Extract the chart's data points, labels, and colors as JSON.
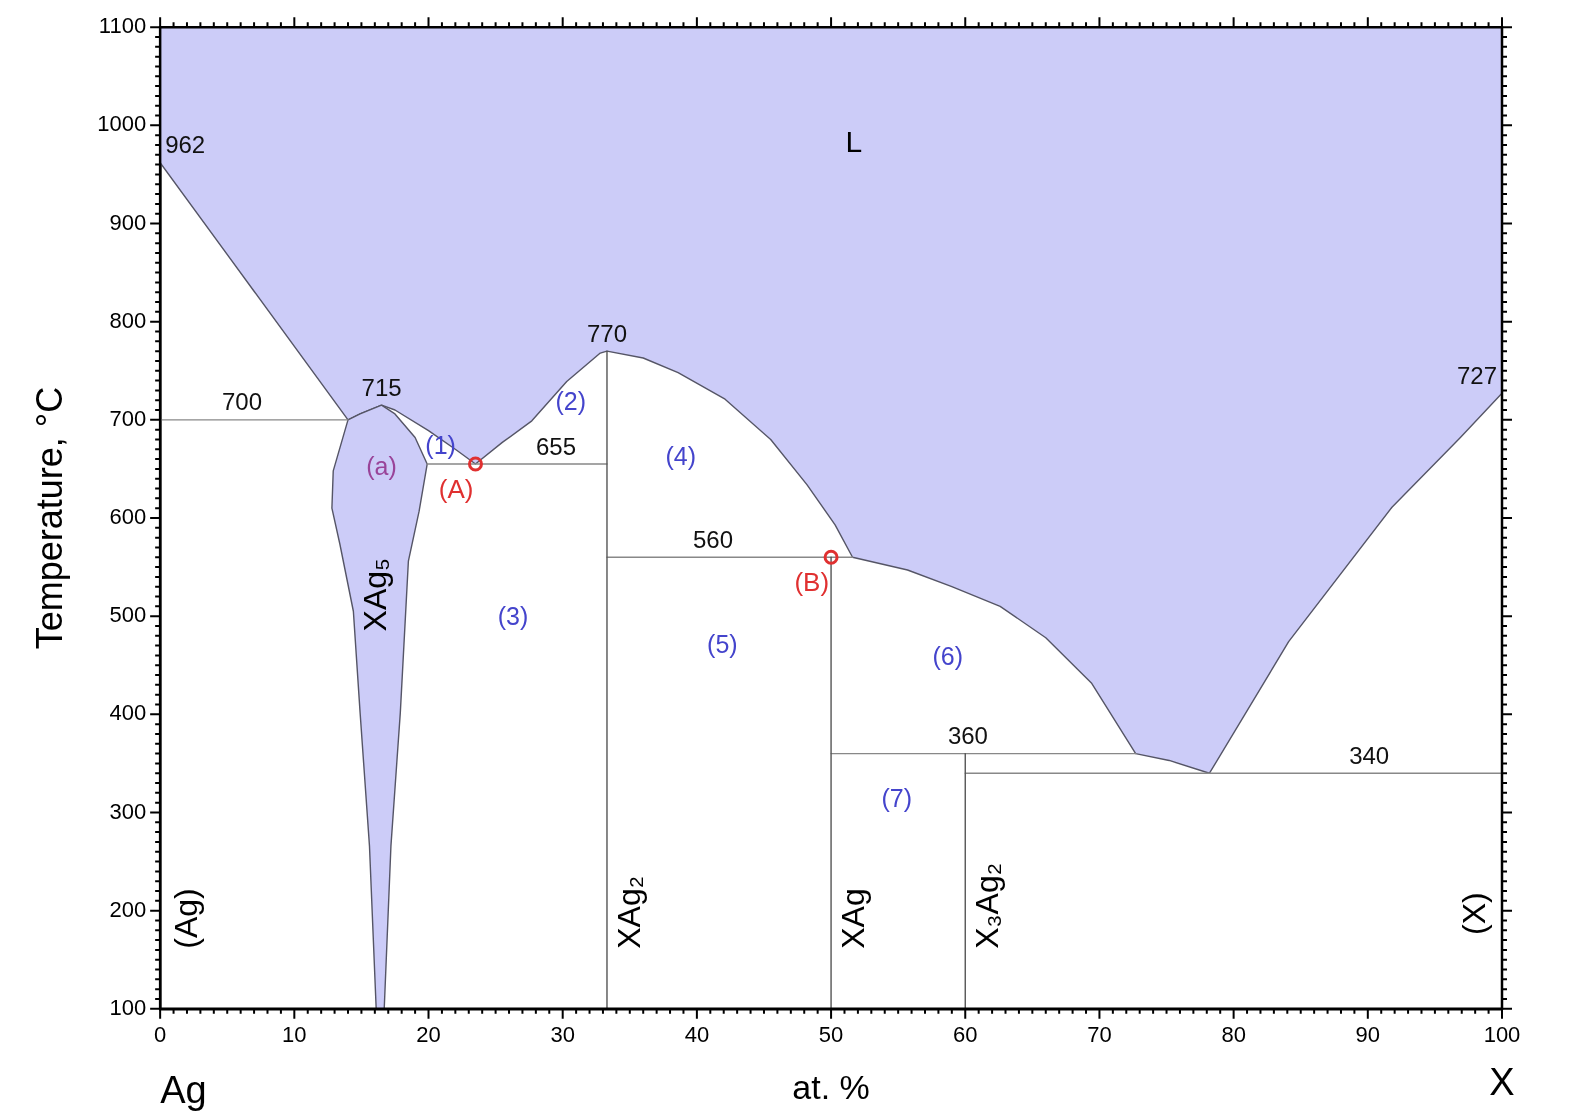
{
  "chart_data": {
    "type": "line",
    "xlabel": "at. %",
    "ylabel": "Temperature, °C",
    "xlim": [
      0,
      100
    ],
    "ylim": [
      100,
      1100
    ],
    "xticks": [
      0,
      {
        "value": 1,
        "label": null
      },
      {
        "value": 2,
        "label": null
      },
      {
        "value": 3,
        "label": null
      },
      {
        "value": 4,
        "label": null
      },
      {
        "value": 5,
        "label": null
      },
      {
        "value": 6,
        "label": null
      },
      {
        "value": 7,
        "label": null
      },
      {
        "value": 8,
        "label": null
      },
      {
        "value": 9,
        "label": null
      },
      10,
      {
        "value": 11,
        "label": null
      },
      {
        "value": 12,
        "label": null
      },
      {
        "value": 13,
        "label": null
      },
      {
        "value": 14,
        "label": null
      },
      {
        "value": 15,
        "label": null
      },
      {
        "value": 16,
        "label": null
      },
      {
        "value": 17,
        "label": null
      },
      {
        "value": 18,
        "label": null
      },
      {
        "value": 19,
        "label": null
      },
      20,
      {
        "value": 21,
        "label": null
      },
      {
        "value": 22,
        "label": null
      },
      {
        "value": 23,
        "label": null
      },
      {
        "value": 24,
        "label": null
      },
      {
        "value": 25,
        "label": null
      },
      {
        "value": 26,
        "label": null
      },
      {
        "value": 27,
        "label": null
      },
      {
        "value": 28,
        "label": null
      },
      {
        "value": 29,
        "label": null
      },
      30,
      {
        "value": 31,
        "label": null
      },
      {
        "value": 32,
        "label": null
      },
      {
        "value": 33,
        "label": null
      },
      {
        "value": 34,
        "label": null
      },
      {
        "value": 35,
        "label": null
      },
      {
        "value": 36,
        "label": null
      },
      {
        "value": 37,
        "label": null
      },
      {
        "value": 38,
        "label": null
      },
      {
        "value": 39,
        "label": null
      },
      40,
      {
        "value": 41,
        "label": null
      },
      {
        "value": 42,
        "label": null
      },
      {
        "value": 43,
        "label": null
      },
      {
        "value": 44,
        "label": null
      },
      {
        "value": 45,
        "label": null
      },
      {
        "value": 46,
        "label": null
      },
      {
        "value": 47,
        "label": null
      },
      {
        "value": 48,
        "label": null
      },
      {
        "value": 49,
        "label": null
      },
      50,
      {
        "value": 51,
        "label": null
      },
      {
        "value": 52,
        "label": null
      },
      {
        "value": 53,
        "label": null
      },
      {
        "value": 54,
        "label": null
      },
      {
        "value": 55,
        "label": null
      },
      {
        "value": 56,
        "label": null
      },
      {
        "value": 57,
        "label": null
      },
      {
        "value": 58,
        "label": null
      },
      {
        "value": 59,
        "label": null
      },
      60,
      {
        "value": 61,
        "label": null
      },
      {
        "value": 62,
        "label": null
      },
      {
        "value": 63,
        "label": null
      },
      {
        "value": 64,
        "label": null
      },
      {
        "value": 65,
        "label": null
      },
      {
        "value": 66,
        "label": null
      },
      {
        "value": 67,
        "label": null
      },
      {
        "value": 68,
        "label": null
      },
      {
        "value": 69,
        "label": null
      },
      70,
      {
        "value": 71,
        "label": null
      },
      {
        "value": 72,
        "label": null
      },
      {
        "value": 73,
        "label": null
      },
      {
        "value": 74,
        "label": null
      },
      {
        "value": 75,
        "label": null
      },
      {
        "value": 76,
        "label": null
      },
      {
        "value": 77,
        "label": null
      },
      {
        "value": 78,
        "label": null
      },
      {
        "value": 79,
        "label": null
      },
      80,
      {
        "value": 81,
        "label": null
      },
      {
        "value": 82,
        "label": null
      },
      {
        "value": 83,
        "label": null
      },
      {
        "value": 84,
        "label": null
      },
      {
        "value": 85,
        "label": null
      },
      {
        "value": 86,
        "label": null
      },
      {
        "value": 87,
        "label": null
      },
      {
        "value": 88,
        "label": null
      },
      {
        "value": 89,
        "label": null
      },
      90,
      {
        "value": 91,
        "label": null
      },
      {
        "value": 92,
        "label": null
      },
      {
        "value": 93,
        "label": null
      },
      {
        "value": 94,
        "label": null
      },
      {
        "value": 95,
        "label": null
      },
      {
        "value": 96,
        "label": null
      },
      {
        "value": 97,
        "label": null
      },
      {
        "value": 98,
        "label": null
      },
      {
        "value": 99,
        "label": null
      },
      100
    ],
    "yticks": [
      100,
      {
        "value": 110,
        "label": null
      },
      {
        "value": 120,
        "label": null
      },
      {
        "value": 130,
        "label": null
      },
      {
        "value": 140,
        "label": null
      },
      {
        "value": 150,
        "label": null
      },
      {
        "value": 160,
        "label": null
      },
      {
        "value": 170,
        "label": null
      },
      {
        "value": 180,
        "label": null
      },
      {
        "value": 190,
        "label": null
      },
      200,
      {
        "value": 210,
        "label": null
      },
      {
        "value": 220,
        "label": null
      },
      {
        "value": 230,
        "label": null
      },
      {
        "value": 240,
        "label": null
      },
      {
        "value": 250,
        "label": null
      },
      {
        "value": 260,
        "label": null
      },
      {
        "value": 270,
        "label": null
      },
      {
        "value": 280,
        "label": null
      },
      {
        "value": 290,
        "label": null
      },
      300,
      {
        "value": 310,
        "label": null
      },
      {
        "value": 320,
        "label": null
      },
      {
        "value": 330,
        "label": null
      },
      {
        "value": 340,
        "label": null
      },
      {
        "value": 350,
        "label": null
      },
      {
        "value": 360,
        "label": null
      },
      {
        "value": 370,
        "label": null
      },
      {
        "value": 380,
        "label": null
      },
      {
        "value": 390,
        "label": null
      },
      400,
      {
        "value": 410,
        "label": null
      },
      {
        "value": 420,
        "label": null
      },
      {
        "value": 430,
        "label": null
      },
      {
        "value": 440,
        "label": null
      },
      {
        "value": 450,
        "label": null
      },
      {
        "value": 460,
        "label": null
      },
      {
        "value": 470,
        "label": null
      },
      {
        "value": 480,
        "label": null
      },
      {
        "value": 490,
        "label": null
      },
      500,
      {
        "value": 510,
        "label": null
      },
      {
        "value": 520,
        "label": null
      },
      {
        "value": 530,
        "label": null
      },
      {
        "value": 540,
        "label": null
      },
      {
        "value": 550,
        "label": null
      },
      {
        "value": 560,
        "label": null
      },
      {
        "value": 570,
        "label": null
      },
      {
        "value": 580,
        "label": null
      },
      {
        "value": 590,
        "label": null
      },
      600,
      {
        "value": 610,
        "label": null
      },
      {
        "value": 620,
        "label": null
      },
      {
        "value": 630,
        "label": null
      },
      {
        "value": 640,
        "label": null
      },
      {
        "value": 650,
        "label": null
      },
      {
        "value": 660,
        "label": null
      },
      {
        "value": 670,
        "label": null
      },
      {
        "value": 680,
        "label": null
      },
      {
        "value": 690,
        "label": null
      },
      700,
      {
        "value": 710,
        "label": null
      },
      {
        "value": 720,
        "label": null
      },
      {
        "value": 730,
        "label": null
      },
      {
        "value": 740,
        "label": null
      },
      {
        "value": 750,
        "label": null
      },
      {
        "value": 760,
        "label": null
      },
      {
        "value": 770,
        "label": null
      },
      {
        "value": 780,
        "label": null
      },
      {
        "value": 790,
        "label": null
      },
      800,
      {
        "value": 810,
        "label": null
      },
      {
        "value": 820,
        "label": null
      },
      {
        "value": 830,
        "label": null
      },
      {
        "value": 840,
        "label": null
      },
      {
        "value": 850,
        "label": null
      },
      {
        "value": 860,
        "label": null
      },
      {
        "value": 870,
        "label": null
      },
      {
        "value": 880,
        "label": null
      },
      {
        "value": 890,
        "label": null
      },
      900,
      {
        "value": 910,
        "label": null
      },
      {
        "value": 920,
        "label": null
      },
      {
        "value": 930,
        "label": null
      },
      {
        "value": 940,
        "label": null
      },
      {
        "value": 950,
        "label": null
      },
      {
        "value": 960,
        "label": null
      },
      {
        "value": 970,
        "label": null
      },
      {
        "value": 980,
        "label": null
      },
      {
        "value": 990,
        "label": null
      },
      1000,
      {
        "value": 1010,
        "label": null
      },
      {
        "value": 1020,
        "label": null
      },
      {
        "value": 1030,
        "label": null
      },
      {
        "value": 1040,
        "label": null
      },
      {
        "value": 1050,
        "label": null
      },
      {
        "value": 1060,
        "label": null
      },
      {
        "value": 1070,
        "label": null
      },
      {
        "value": 1080,
        "label": null
      },
      {
        "value": 1090,
        "label": null
      },
      1100
    ],
    "grid": false,
    "legend": false,
    "series": [
      {
        "type": "scatter",
        "color": "#e03030",
        "name": "(A)",
        "x": [
          23.5
        ],
        "values": [
          655
        ]
      },
      {
        "type": "scatter",
        "color": "#e03030",
        "name": "(B)",
        "x": [
          50
        ],
        "values": [
          560
        ]
      },
      {
        "color": "#555555",
        "name": "XAg₂",
        "x": [
          33.3,
          33.3
        ],
        "values": [
          100,
          770
        ]
      },
      {
        "color": "#555555",
        "name": "XAg",
        "x": [
          50,
          50
        ],
        "values": [
          100,
          560
        ]
      },
      {
        "color": "#555555",
        "name": "X₃Ag₂",
        "x": [
          60,
          60
        ],
        "values": [
          100,
          360
        ]
      },
      {
        "color": "#888888",
        "x": [
          0,
          14
        ],
        "values": [
          700,
          700
        ]
      },
      {
        "color": "#888888",
        "x": [
          19.9,
          33.3
        ],
        "values": [
          655,
          655
        ]
      },
      {
        "color": "#888888",
        "x": [
          33.3,
          51.6
        ],
        "values": [
          560,
          560
        ]
      },
      {
        "color": "#888888",
        "x": [
          50,
          72.7
        ],
        "values": [
          360,
          360
        ]
      },
      {
        "color": "#888888",
        "x": [
          60,
          100
        ],
        "values": [
          340,
          340
        ]
      },
      {
        "type": "area",
        "color": "#ccccf8",
        "name": "XAg₅",
        "x": [
          16.5,
          17.5,
          19,
          19.9,
          19.3,
          18.5,
          17.9,
          17.2,
          16.7,
          16.1,
          15.6,
          14.9,
          14.4,
          13.4,
          12.8,
          12.9,
          14,
          14.9,
          16.5
        ],
        "values": [
          715,
          706,
          682,
          655,
          607,
          556,
          402,
          266,
          100,
          100,
          266,
          402,
          505,
          573,
          610,
          648,
          700,
          706,
          715
        ]
      },
      {
        "type": "area",
        "color": "#ccccf8",
        "x": [
          0,
          7,
          14,
          14.9,
          16.5,
          17.5,
          20,
          22.1,
          23.5,
          25.5,
          27.7,
          30.3,
          32.8,
          33.3,
          36,
          38.6,
          42.1,
          45.5,
          48.2,
          50.3,
          51.6,
          55.7,
          59,
          62.6,
          66,
          69.4,
          72.7,
          75.2,
          78.2,
          84.1,
          91.8,
          96.9,
          100,
          100,
          0
        ],
        "values": [
          962,
          831,
          700,
          706,
          715,
          710,
          689,
          669,
          655,
          677,
          699,
          739,
          768,
          770,
          763,
          748,
          721,
          680,
          634,
          593,
          560,
          547,
          530,
          510,
          478,
          432,
          360,
          353,
          340,
          474,
          611,
          682,
          727,
          1100,
          1100
        ]
      }
    ],
    "annotations": [
      {
        "text": "962",
        "x": 0,
        "y": 962
      },
      {
        "text": "700",
        "x": 6.1,
        "y": 700
      },
      {
        "text": "715",
        "x": 16.5,
        "y": 715
      },
      {
        "text": "770",
        "x": 33.3,
        "y": 770
      },
      {
        "text": "655",
        "x": 29.5,
        "y": 655
      },
      {
        "text": "560",
        "x": 41.2,
        "y": 560
      },
      {
        "text": "727",
        "x": 100,
        "y": 727
      },
      {
        "text": "360",
        "x": 60.2,
        "y": 360
      },
      {
        "text": "340",
        "x": 90.1,
        "y": 340
      },
      "L",
      "(1)",
      "(2)",
      "(3)",
      "(4)",
      "(5)",
      "(6)",
      "(7)",
      "(a)",
      "(Ag)",
      "(X)",
      "Ag",
      "X"
    ]
  }
}
